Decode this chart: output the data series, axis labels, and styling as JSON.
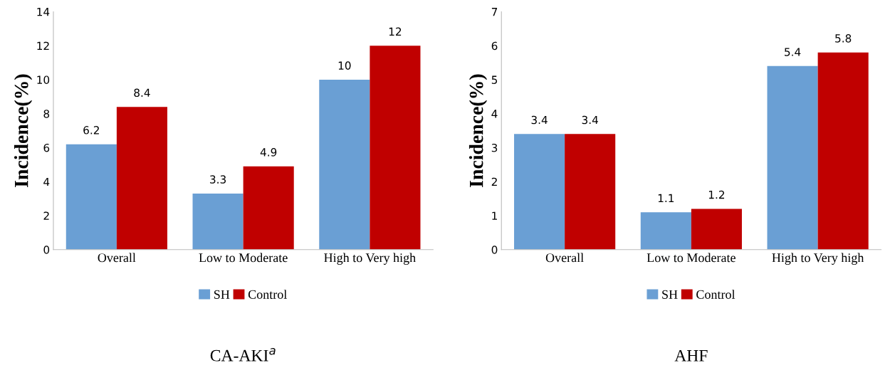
{
  "chart_data": [
    {
      "type": "bar",
      "title": "CA-AKI$^{a}$",
      "ylabel": "Incidence(%)",
      "categories": [
        "Overall",
        "Low to Moderate",
        "High to Very high"
      ],
      "series": [
        {
          "name": "SH",
          "color": "#6a9fd4",
          "values": [
            6.2,
            3.3,
            10
          ]
        },
        {
          "name": "Control",
          "color": "#c00000",
          "values": [
            8.4,
            4.9,
            12
          ]
        }
      ],
      "ylim": [
        0,
        14
      ],
      "yticks": [
        0,
        2,
        4,
        6,
        8,
        10,
        12,
        14
      ],
      "data_labels": true,
      "legend": "bottom",
      "grid": false
    },
    {
      "type": "bar",
      "title": "AHF",
      "ylabel": "Incidence(%)",
      "categories": [
        "Overall",
        "Low to Moderate",
        "High to Very high"
      ],
      "series": [
        {
          "name": "SH",
          "color": "#6a9fd4",
          "values": [
            3.4,
            1.1,
            5.4
          ]
        },
        {
          "name": "Control",
          "color": "#c00000",
          "values": [
            3.4,
            1.2,
            5.8
          ]
        }
      ],
      "ylim": [
        0,
        7
      ],
      "yticks": [
        0,
        1,
        2,
        3,
        4,
        5,
        6,
        7
      ],
      "data_labels": true,
      "legend": "bottom",
      "grid": false
    }
  ]
}
